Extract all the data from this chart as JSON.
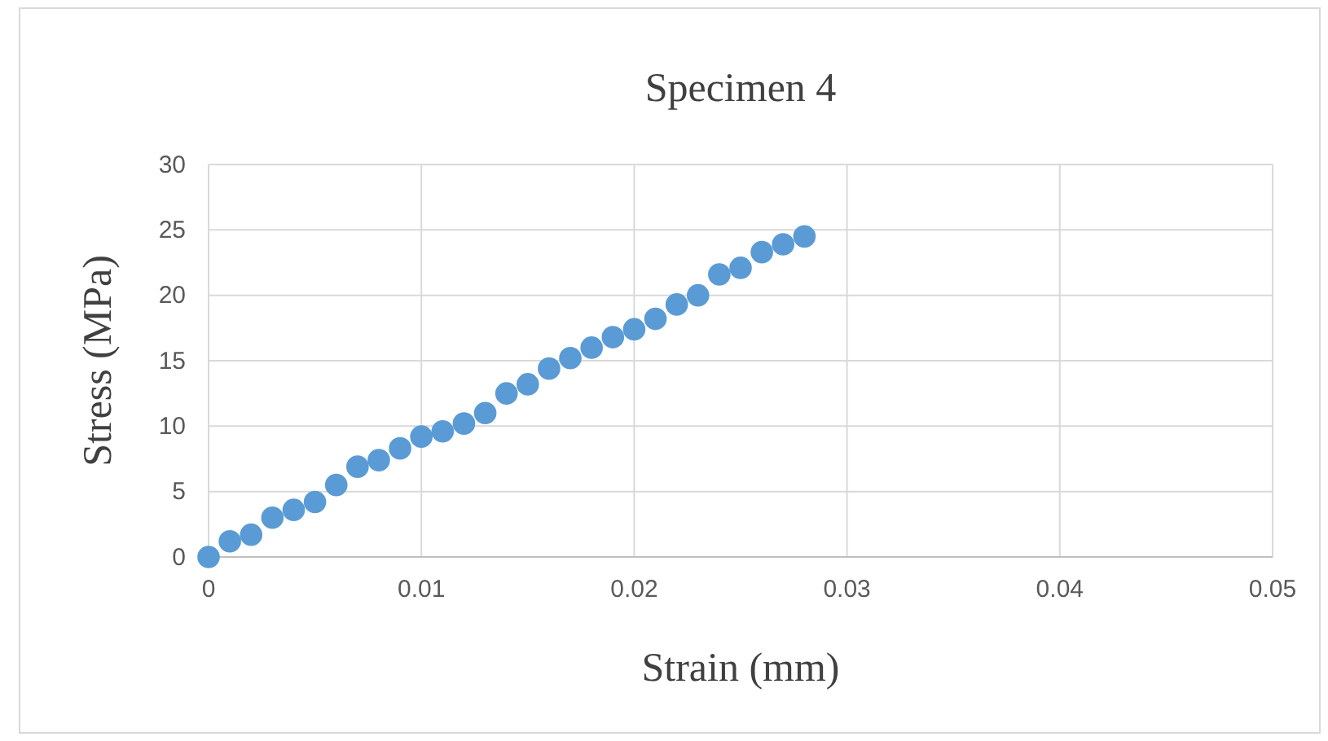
{
  "chart_data": {
    "type": "scatter",
    "title": "Specimen 4",
    "xlabel": "Strain (mm)",
    "ylabel": "Stress (MPa)",
    "x": [
      0,
      0.001,
      0.002,
      0.003,
      0.004,
      0.005,
      0.006,
      0.007,
      0.008,
      0.009,
      0.01,
      0.011,
      0.012,
      0.013,
      0.014,
      0.015,
      0.016,
      0.017,
      0.018,
      0.019,
      0.02,
      0.021,
      0.022,
      0.023,
      0.024,
      0.025,
      0.026,
      0.027,
      0.028
    ],
    "series": [
      {
        "color": "#5b9bd5",
        "values": [
          0,
          1.2,
          1.7,
          3,
          3.6,
          4.2,
          5.5,
          6.9,
          7.4,
          8.3,
          9.2,
          9.6,
          10.2,
          11,
          12.5,
          13.2,
          14.4,
          15.2,
          16,
          16.8,
          17.4,
          18.2,
          19.3,
          20,
          21.6,
          22.1,
          23.3,
          23.9,
          24.5
        ]
      }
    ],
    "xlim": [
      0,
      0.05
    ],
    "xticks": [
      0,
      0.01,
      0.02,
      0.03,
      0.04,
      0.05
    ],
    "ylim": [
      0,
      30
    ],
    "yticks": [
      0,
      5,
      10,
      15,
      20,
      25,
      30
    ],
    "grid": true,
    "marker": "circle"
  }
}
